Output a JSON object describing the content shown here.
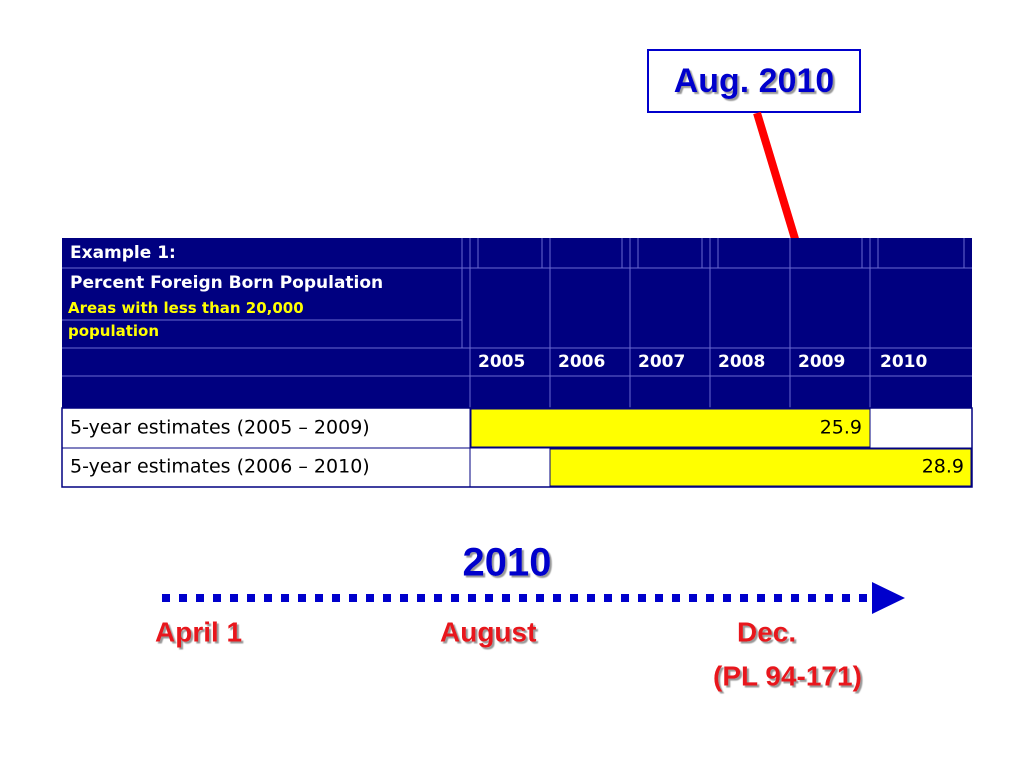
{
  "callout": {
    "text": "Aug. 2010"
  },
  "table": {
    "title": "Example 1:",
    "subtitle": "Percent Foreign Born Population",
    "note": "Areas with less than 20,000 population",
    "years": [
      "2005",
      "2006",
      "2007",
      "2008",
      "2009",
      "2010"
    ],
    "rows": [
      {
        "label": "5-year estimates (2005 – 2009)",
        "value": "25.9"
      },
      {
        "label": "5-year estimates (2006 – 2010)",
        "value": "28.9"
      }
    ]
  },
  "timeline": {
    "year": "2010",
    "start": "April 1",
    "middle": "August",
    "end": "Dec.",
    "end_note": "(PL 94-171)"
  }
}
